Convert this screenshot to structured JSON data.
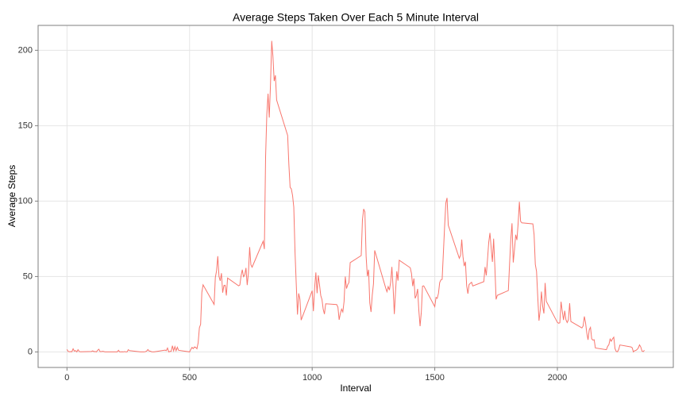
{
  "chart_data": {
    "type": "line",
    "title": "Average Steps Taken Over Each 5 Minute Interval",
    "x_label": "Interval",
    "y_label": "Average Steps",
    "color": "#F8766D",
    "grid": true,
    "xlim": [
      -117.75,
      2472.75
    ],
    "xticks": [
      0,
      500,
      1000,
      1500,
      2000
    ],
    "ylim": [
      -10.3,
      216.5
    ],
    "yticks": [
      0,
      50,
      100,
      150,
      200
    ],
    "x": [
      0,
      5,
      10,
      15,
      20,
      25,
      30,
      35,
      40,
      45,
      50,
      55,
      100,
      105,
      110,
      115,
      120,
      125,
      130,
      135,
      140,
      145,
      150,
      155,
      200,
      205,
      210,
      215,
      220,
      225,
      230,
      235,
      240,
      245,
      250,
      255,
      300,
      305,
      310,
      315,
      320,
      325,
      330,
      335,
      340,
      345,
      350,
      355,
      400,
      405,
      410,
      415,
      420,
      425,
      430,
      435,
      440,
      445,
      450,
      455,
      500,
      505,
      510,
      515,
      520,
      525,
      530,
      535,
      540,
      545,
      550,
      555,
      600,
      605,
      610,
      615,
      620,
      625,
      630,
      635,
      640,
      645,
      650,
      655,
      700,
      705,
      710,
      715,
      720,
      725,
      730,
      735,
      740,
      745,
      750,
      755,
      800,
      805,
      810,
      815,
      820,
      825,
      830,
      835,
      840,
      845,
      850,
      855,
      900,
      905,
      910,
      915,
      920,
      925,
      930,
      935,
      940,
      945,
      950,
      955,
      1000,
      1005,
      1010,
      1015,
      1020,
      1025,
      1030,
      1035,
      1040,
      1045,
      1050,
      1055,
      1100,
      1105,
      1110,
      1115,
      1120,
      1125,
      1130,
      1135,
      1140,
      1145,
      1150,
      1155,
      1200,
      1205,
      1210,
      1215,
      1220,
      1225,
      1230,
      1235,
      1240,
      1245,
      1250,
      1255,
      1300,
      1305,
      1310,
      1315,
      1320,
      1325,
      1330,
      1335,
      1340,
      1345,
      1350,
      1355,
      1400,
      1405,
      1410,
      1415,
      1420,
      1425,
      1430,
      1435,
      1440,
      1445,
      1450,
      1455,
      1500,
      1505,
      1510,
      1515,
      1520,
      1525,
      1530,
      1535,
      1540,
      1545,
      1550,
      1555,
      1600,
      1605,
      1610,
      1615,
      1620,
      1625,
      1630,
      1635,
      1640,
      1645,
      1650,
      1655,
      1700,
      1705,
      1710,
      1715,
      1720,
      1725,
      1730,
      1735,
      1740,
      1745,
      1750,
      1755,
      1800,
      1805,
      1810,
      1815,
      1820,
      1825,
      1830,
      1835,
      1840,
      1845,
      1850,
      1855,
      1900,
      1905,
      1910,
      1915,
      1920,
      1925,
      1930,
      1935,
      1940,
      1945,
      1950,
      1955,
      2000,
      2005,
      2010,
      2015,
      2020,
      2025,
      2030,
      2035,
      2040,
      2045,
      2050,
      2055,
      2100,
      2105,
      2110,
      2115,
      2120,
      2125,
      2130,
      2135,
      2140,
      2145,
      2150,
      2155,
      2200,
      2205,
      2210,
      2215,
      2220,
      2225,
      2230,
      2235,
      2240,
      2245,
      2250,
      2255,
      2300,
      2305,
      2310,
      2315,
      2320,
      2325,
      2330,
      2335,
      2340,
      2345,
      2350,
      2355
    ],
    "values": [
      1.7,
      0.3,
      0.1,
      0.2,
      0.1,
      2.1,
      0.5,
      0.9,
      0,
      1.5,
      0.3,
      0.1,
      0.3,
      0.7,
      0.2,
      0.3,
      0,
      1.1,
      1.8,
      0.2,
      0.2,
      0.4,
      0.3,
      0,
      0,
      0,
      1.1,
      0,
      0,
      0.1,
      0,
      0.2,
      0,
      0,
      1.5,
      0.9,
      0,
      0,
      0,
      0,
      0.2,
      0.6,
      1.6,
      0.6,
      0.5,
      0.1,
      0,
      0,
      1.2,
      0.9,
      2.6,
      0,
      0.3,
      0.4,
      4.1,
      0.7,
      3.5,
      0.8,
      3.1,
      1.1,
      0,
      1.6,
      3,
      2.2,
      3.3,
      3,
      2.1,
      6.1,
      16,
      18.3,
      39.5,
      44.5,
      31.5,
      49.3,
      53.8,
      63.5,
      50,
      47.1,
      52.2,
      39.3,
      44,
      44.2,
      37.4,
      49,
      43.8,
      44.4,
      50.5,
      54.5,
      49.9,
      51,
      55.7,
      44.3,
      52.3,
      69.5,
      57.8,
      56.2,
      73.4,
      68.2,
      129.4,
      157.5,
      171.2,
      155.4,
      177.3,
      206.2,
      195.9,
      179.6,
      183.4,
      167,
      143.5,
      124,
      109.1,
      108.1,
      103.7,
      96,
      66.2,
      45.2,
      24.8,
      38.8,
      35,
      21.1,
      40.6,
      27,
      42.4,
      52.7,
      38.9,
      50.8,
      44.3,
      37.4,
      34.7,
      28.3,
      25.1,
      31.9,
      31.4,
      29.7,
      21.3,
      25.5,
      28.4,
      26.5,
      33.4,
      50,
      42,
      44.6,
      46,
      59.2,
      63.9,
      87.7,
      94.8,
      92.8,
      63.4,
      50.2,
      54.5,
      32.4,
      26.5,
      37.7,
      45.1,
      67.3,
      42.3,
      39.9,
      43.3,
      41,
      46.2,
      56.4,
      42.8,
      25.1,
      40,
      53.5,
      47.3,
      60.8,
      55.8,
      52,
      43.6,
      48.7,
      35.5,
      37.5,
      41.8,
      27.5,
      17.1,
      26.1,
      43.6,
      43.8,
      30,
      36.1,
      35.5,
      38.8,
      46,
      47.8,
      48.1,
      65.3,
      82.9,
      98.7,
      102.1,
      84,
      62.1,
      64.1,
      74.5,
      63.2,
      56.9,
      59.8,
      43.9,
      38.6,
      44.7,
      45.5,
      46.2,
      43.7,
      46.6,
      56.3,
      50.7,
      61.2,
      72.7,
      78.9,
      68.9,
      59.7,
      75.1,
      56.5,
      34.8,
      37.5,
      40.7,
      58,
      74.7,
      85.3,
      59.3,
      67.8,
      77.7,
      74.2,
      85.3,
      99.5,
      86.6,
      85.6,
      84.9,
      77.8,
      58,
      53.4,
      36.3,
      20.7,
      27.4,
      40,
      30.2,
      25.5,
      45.7,
      33.5,
      19.6,
      19,
      19.3,
      33.3,
      26.8,
      21.2,
      27.3,
      21.3,
      19.5,
      21.3,
      32.3,
      20.2,
      15.9,
      17.2,
      23.5,
      19.2,
      12.5,
      8,
      14.7,
      16.3,
      8.7,
      7.8,
      8.1,
      2.6,
      1.5,
      3.7,
      4.8,
      8.5,
      7.1,
      8.7,
      9.8,
      2.2,
      0.3,
      0.1,
      1.6,
      4.6,
      3.3,
      2.8,
      0,
      0.8,
      1,
      1.6,
      2.6,
      4.7,
      3.3,
      0.6,
      0.2,
      1.1
    ]
  }
}
